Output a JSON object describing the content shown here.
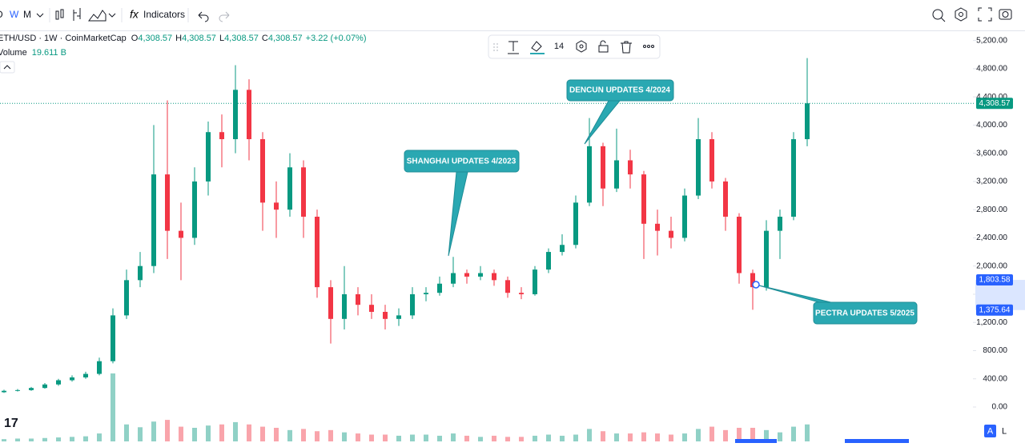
{
  "toolbar": {
    "intervals": [
      "D",
      "W",
      "M"
    ],
    "indicators": "Indicators"
  },
  "legend": {
    "symbol": "ETH/USD · 1W · CoinMarketCap",
    "ohlc": [
      [
        "O",
        "4,308.57"
      ],
      [
        "H",
        "4,308.57"
      ],
      [
        "L",
        "4,308.57"
      ],
      [
        "C",
        "4,308.57"
      ]
    ],
    "change": "+3.22 (+0.07%)",
    "volume_label": "Volume",
    "volume_value": "19.611 B"
  },
  "drawing_toolbar": {
    "font_size": "14"
  },
  "scale_buttons": [
    "A",
    "L"
  ],
  "chart_data": {
    "type": "candlestick",
    "colors": {
      "up": "#089981",
      "down": "#f23645"
    },
    "open": [
      210,
      230,
      240,
      270,
      320,
      380,
      420,
      470,
      650,
      1300,
      1800,
      2000,
      3300,
      2500,
      2400,
      3200,
      3900,
      3800,
      4500,
      3800,
      2900,
      2800,
      3400,
      2700,
      1700,
      1250,
      1600,
      1450,
      1350,
      1250,
      1300,
      1600,
      1620,
      1750,
      1900,
      1850,
      1900,
      1800,
      1620,
      1600,
      1950,
      2200,
      2300,
      2900,
      3700,
      3100,
      3500,
      3300,
      2600,
      2500,
      2400,
      3000,
      3800,
      3200,
      2700,
      1900,
      1700,
      2500,
      2700,
      3800
    ],
    "high": [
      245,
      255,
      285,
      340,
      400,
      450,
      500,
      700,
      1400,
      1950,
      2200,
      4000,
      4350,
      2900,
      3400,
      4050,
      4150,
      4850,
      4650,
      3900,
      3200,
      3600,
      3500,
      2800,
      1800,
      2000,
      1700,
      1600,
      1450,
      1400,
      1700,
      1700,
      1850,
      2130,
      1950,
      2000,
      1950,
      1850,
      1700,
      2000,
      2250,
      2450,
      3000,
      4100,
      3750,
      3950,
      3650,
      3350,
      2800,
      2700,
      3100,
      4100,
      3900,
      3250,
      2750,
      1950,
      2650,
      2800,
      3900,
      4950
    ],
    "low": [
      200,
      220,
      230,
      260,
      300,
      360,
      400,
      450,
      620,
      1250,
      1700,
      1900,
      2100,
      1800,
      2300,
      3000,
      3400,
      3600,
      3500,
      2500,
      2400,
      2700,
      2400,
      1550,
      900,
      1100,
      1300,
      1250,
      1100,
      1150,
      1250,
      1500,
      1580,
      1700,
      1750,
      1800,
      1720,
      1550,
      1530,
      1580,
      1900,
      2150,
      2250,
      2850,
      2850,
      3050,
      3100,
      2100,
      2150,
      2250,
      2350,
      2950,
      3100,
      2500,
      1750,
      1380,
      1650,
      2100,
      2650,
      3700
    ],
    "close": [
      230,
      240,
      270,
      320,
      380,
      420,
      470,
      650,
      1300,
      1800,
      2000,
      3300,
      2500,
      2400,
      3200,
      3900,
      3800,
      4500,
      3800,
      2900,
      2800,
      3400,
      2700,
      1700,
      1250,
      1600,
      1450,
      1350,
      1250,
      1300,
      1600,
      1620,
      1750,
      1900,
      1850,
      1900,
      1800,
      1620,
      1600,
      1950,
      2200,
      2300,
      2900,
      3700,
      3100,
      3500,
      3300,
      2600,
      2500,
      2400,
      3000,
      3800,
      3200,
      2700,
      1900,
      1700,
      2500,
      2700,
      3800,
      4308.57
    ],
    "volume": [
      4,
      5,
      5,
      6,
      7,
      8,
      9,
      14,
      120,
      30,
      25,
      35,
      38,
      26,
      24,
      28,
      30,
      34,
      30,
      26,
      24,
      20,
      22,
      18,
      20,
      16,
      14,
      12,
      12,
      10,
      12,
      12,
      10,
      14,
      10,
      8,
      10,
      8,
      8,
      10,
      12,
      10,
      12,
      22,
      18,
      14,
      14,
      16,
      14,
      12,
      14,
      22,
      26,
      20,
      24,
      24,
      20,
      16,
      26,
      30
    ],
    "ylim": [
      0,
      5400
    ],
    "yticks": [
      {
        "value": 0,
        "label": "0.00"
      },
      {
        "value": 400,
        "label": "400.00"
      },
      {
        "value": 800,
        "label": "800.00"
      },
      {
        "value": 1200,
        "label": "1,200.00"
      },
      {
        "value": 1600,
        "label": "1,600.00"
      },
      {
        "value": 2000,
        "label": "2,000.00"
      },
      {
        "value": 2400,
        "label": "2,400.00"
      },
      {
        "value": 2800,
        "label": "2,800.00"
      },
      {
        "value": 3200,
        "label": "3,200.00"
      },
      {
        "value": 3600,
        "label": "3,600.00"
      },
      {
        "value": 4000,
        "label": "4,000.00"
      },
      {
        "value": 4400,
        "label": "4,400.00"
      },
      {
        "value": 4800,
        "label": "4,800.00"
      },
      {
        "value": 5200,
        "label": "5,200.00"
      }
    ],
    "price_tags": [
      {
        "value": 4308.57,
        "label": "4,308.57",
        "color": "#089981"
      },
      {
        "value": 1803.58,
        "label": "1,803.58",
        "color": "#2962ff"
      },
      {
        "value": 1375.64,
        "label": "1,375.64",
        "color": "#2962ff"
      }
    ],
    "annotations": [
      "SHANGHAI UPDATES 4/2023",
      "DENCUN UPDATES 4/2024",
      "PECTRA UPDATES 5/2025"
    ]
  }
}
